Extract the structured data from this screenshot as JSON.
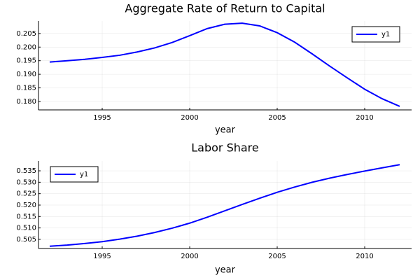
{
  "chart_data": [
    {
      "type": "line",
      "title": "Aggregate Rate of Return to Capital",
      "x_label": "year",
      "x": [
        1992,
        1993,
        1994,
        1995,
        1996,
        1997,
        1998,
        1999,
        2000,
        2001,
        2002,
        2003,
        2004,
        2005,
        2006,
        2007,
        2008,
        2009,
        2010,
        2011,
        2012
      ],
      "series": [
        {
          "name": "y1",
          "color": "#0000ff",
          "values": [
            0.1945,
            0.195,
            0.1955,
            0.1962,
            0.197,
            0.1982,
            0.1997,
            0.2017,
            0.2042,
            0.2068,
            0.2084,
            0.2088,
            0.2078,
            0.2053,
            0.2018,
            0.1975,
            0.193,
            0.1887,
            0.1845,
            0.181,
            0.1782
          ]
        }
      ],
      "xlim": [
        1991.36,
        2012.68
      ],
      "xticks": [
        1995,
        2000,
        2005,
        2010
      ],
      "ylim": [
        0.1769,
        0.2096
      ],
      "yticks": [
        {
          "value": 0.18,
          "label": "0.180"
        },
        0.185,
        {
          "value": 0.19,
          "label": "0.190"
        },
        0.195,
        {
          "value": 0.2,
          "label": "0.200"
        },
        0.205
      ],
      "grid": true,
      "legend": "top-right"
    },
    {
      "type": "line",
      "title": "Labor Share",
      "x_label": "year",
      "x": [
        1992,
        1993,
        1994,
        1995,
        1996,
        1997,
        1998,
        1999,
        2000,
        2001,
        2002,
        2003,
        2004,
        2005,
        2006,
        2007,
        2008,
        2009,
        2010,
        2011,
        2012
      ],
      "series": [
        {
          "name": "y1",
          "color": "#0000ff",
          "values": [
            0.502,
            0.5025,
            0.5032,
            0.504,
            0.5051,
            0.5064,
            0.508,
            0.5099,
            0.5121,
            0.5147,
            0.5175,
            0.5203,
            0.523,
            0.5256,
            0.5279,
            0.53,
            0.5318,
            0.5334,
            0.5349,
            0.5363,
            0.5377
          ]
        }
      ],
      "xlim": [
        1991.36,
        2012.68
      ],
      "xticks": [
        1995,
        2000,
        2005,
        2010
      ],
      "ylim": [
        0.501,
        0.5393
      ],
      "yticks": [
        0.505,
        {
          "value": 0.51,
          "label": "0.510"
        },
        0.515,
        {
          "value": 0.52,
          "label": "0.520"
        },
        0.525,
        {
          "value": 0.53,
          "label": "0.530"
        },
        0.535
      ],
      "grid": true,
      "legend": "top-left"
    }
  ]
}
